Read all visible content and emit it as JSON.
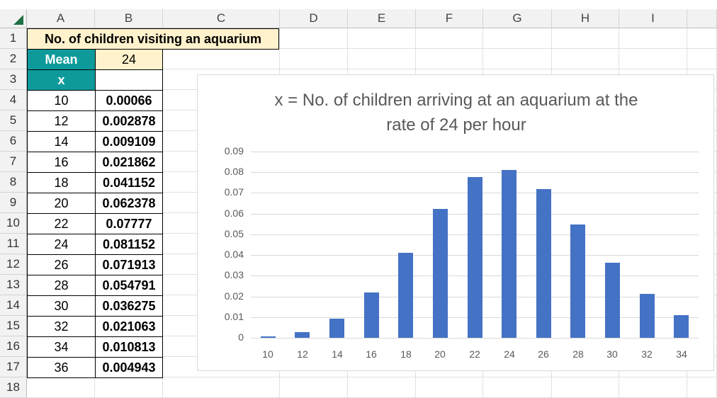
{
  "sheet": {
    "columns": [
      "A",
      "B",
      "C",
      "D",
      "E",
      "F",
      "G",
      "H",
      "I"
    ],
    "rows": [
      "1",
      "2",
      "3",
      "4",
      "5",
      "6",
      "7",
      "8",
      "9",
      "10",
      "11",
      "12",
      "13",
      "14",
      "15",
      "16",
      "17",
      "18"
    ],
    "title": "No. of children visiting an aquarium",
    "mean_label": "Mean",
    "mean_value": "24",
    "x_header": "x",
    "table": [
      {
        "x": "10",
        "p": "0.00066"
      },
      {
        "x": "12",
        "p": "0.002878"
      },
      {
        "x": "14",
        "p": "0.009109"
      },
      {
        "x": "16",
        "p": "0.021862"
      },
      {
        "x": "18",
        "p": "0.041152"
      },
      {
        "x": "20",
        "p": "0.062378"
      },
      {
        "x": "22",
        "p": "0.07777"
      },
      {
        "x": "24",
        "p": "0.081152"
      },
      {
        "x": "26",
        "p": "0.071913"
      },
      {
        "x": "28",
        "p": "0.054791"
      },
      {
        "x": "30",
        "p": "0.036275"
      },
      {
        "x": "32",
        "p": "0.021063"
      },
      {
        "x": "34",
        "p": "0.010813"
      },
      {
        "x": "36",
        "p": "0.004943"
      }
    ],
    "colors": {
      "title_fill": "#fff2cc",
      "header_fill": "#0e9a9a",
      "bar": "#4472c4",
      "select_triangle": "#1e7145"
    }
  },
  "chart_data": {
    "type": "bar",
    "title": "x = No. of children arriving at an aquarium at the rate of 24 per hour",
    "title_lines": [
      "x = No. of children arriving at an aquarium at the",
      "rate of 24 per hour"
    ],
    "categories": [
      "10",
      "12",
      "14",
      "16",
      "18",
      "20",
      "22",
      "24",
      "26",
      "28",
      "30",
      "32",
      "34"
    ],
    "values": [
      0.00066,
      0.002878,
      0.009109,
      0.021862,
      0.041152,
      0.062378,
      0.07777,
      0.081152,
      0.071913,
      0.054791,
      0.036275,
      0.021063,
      0.010813
    ],
    "ylim": [
      0,
      0.09
    ],
    "yticks": [
      "0",
      "0.01",
      "0.02",
      "0.03",
      "0.04",
      "0.05",
      "0.06",
      "0.07",
      "0.08",
      "0.09"
    ],
    "xlabel": "",
    "ylabel": "",
    "grid": true,
    "legend": "none"
  }
}
